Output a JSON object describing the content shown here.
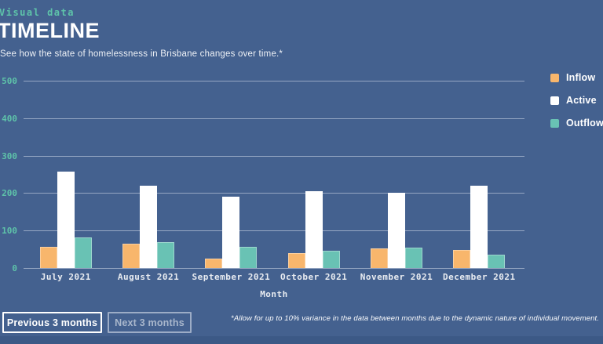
{
  "page": {
    "eyebrow": "Visual data",
    "title": "TIMELINE",
    "subtitle": "See how the state of homelessness in Brisbane changes over time.*",
    "footnote": "*Allow for up to 10% variance in the data between months due to the dynamic nature of individual movement."
  },
  "buttons": {
    "previous_label": "Previous 3 months",
    "next_label": "Next 3 months"
  },
  "colors": {
    "background": "#44618f",
    "footer_strip": "#3c5986",
    "accent_teal_text": "#5ec3a9",
    "gridline": "rgba(205,214,230,0.6)",
    "inflow": "#f8b66c",
    "active": "#ffffff",
    "outflow": "#69c2b4"
  },
  "chart_data": {
    "type": "bar",
    "title": "TIMELINE",
    "categories": [
      "July 2021",
      "August 2021",
      "September 2021",
      "October 2021",
      "November 2021",
      "December 2021"
    ],
    "series": [
      {
        "name": "Inflow",
        "color": "#f8b66c",
        "values": [
          57,
          64,
          26,
          40,
          53,
          49
        ]
      },
      {
        "name": "Active",
        "color": "#ffffff",
        "values": [
          258,
          220,
          190,
          205,
          200,
          220
        ]
      },
      {
        "name": "Outflow",
        "color": "#69c2b4",
        "values": [
          82,
          68,
          56,
          47,
          54,
          35
        ]
      }
    ],
    "xlabel": "Month",
    "ylabel": "",
    "ylim": [
      0,
      500
    ],
    "yticks": [
      0,
      100,
      200,
      300,
      400,
      500
    ],
    "grid": true,
    "legend_position": "right"
  }
}
